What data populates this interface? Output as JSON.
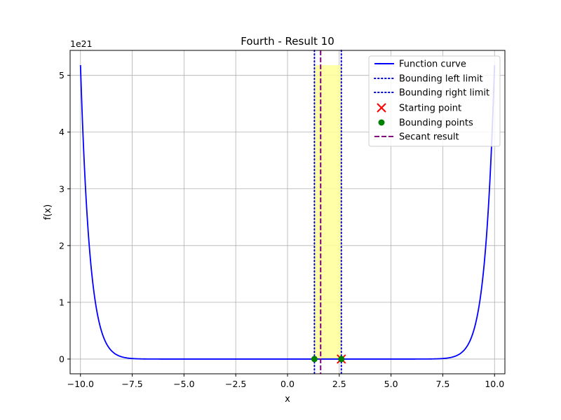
{
  "chart_data": {
    "type": "line",
    "title": "Fourth - Result 10",
    "xlabel": "x",
    "ylabel": "f(x)",
    "y_offset_label": "1e21",
    "xlim": [
      -10.5,
      10.5
    ],
    "ylim": [
      -0.26,
      5.44
    ],
    "x_ticks": [
      -10,
      -7.5,
      -5,
      -2.5,
      0,
      2.5,
      5,
      7.5,
      10
    ],
    "x_tick_labels": [
      "−10.0",
      "−7.5",
      "−5.0",
      "−2.5",
      "0.0",
      "2.5",
      "5.0",
      "7.5",
      "10.0"
    ],
    "y_ticks": [
      0,
      1,
      2,
      3,
      4,
      5
    ],
    "y_tick_labels": [
      "0",
      "1",
      "2",
      "3",
      "4",
      "5"
    ],
    "y_unit": 1e+21,
    "grid": true,
    "legend_location": "top-right",
    "function": {
      "name": "Function curve",
      "color": "#0000ff",
      "x_range": [
        -10,
        10
      ],
      "peak_value": 5.18
    },
    "shaded_region": {
      "x_range": [
        1.3,
        2.6
      ],
      "color": "#ffff99"
    },
    "bounding_left": {
      "name": "Bounding left limit",
      "x": 1.3,
      "color": "#0000cc"
    },
    "bounding_right": {
      "name": "Bounding right limit",
      "x": 2.6,
      "color": "#0000cc"
    },
    "starting_point": {
      "name": "Starting point",
      "x": 2.6,
      "y": 0,
      "color": "#ff0000"
    },
    "bounding_points": {
      "name": "Bounding points",
      "points": [
        [
          1.3,
          0
        ],
        [
          2.6,
          0
        ]
      ],
      "color": "#008000"
    },
    "secant_result": {
      "name": "Secant result",
      "x": 1.6,
      "color": "#800080"
    }
  }
}
